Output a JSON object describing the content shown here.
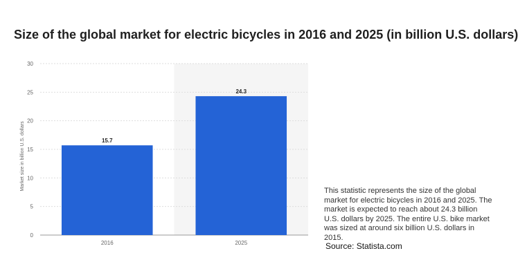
{
  "title": "Size of the global market for electric bicycles in 2016 and 2025 (in billion U.S. dollars)",
  "description": "This statistic represents the size of the global market for electric bicycles in 2016 and 2025. The market is expected to reach about 24.3 billion U.S. dollars by 2025. The entire U.S. bike market was sized at around six billion U.S. dollars in 2015.",
  "source": "Source: Statista.com",
  "colors": {
    "bar": "#2463d6",
    "grid": "#dddddd",
    "highlight_band": "#f5f5f5",
    "axis_text": "#666666"
  },
  "chart_data": {
    "type": "bar",
    "categories": [
      "2016",
      "2025"
    ],
    "values": [
      15.7,
      24.3
    ],
    "data_labels": [
      "15.7",
      "24.3"
    ],
    "title": "",
    "xlabel": "",
    "ylabel": "Market size in billion U.S. dollars",
    "ylim": [
      0,
      30
    ],
    "yticks": [
      0,
      5,
      10,
      15,
      20,
      25,
      30
    ],
    "grid": true,
    "highlighted_category": "2025"
  }
}
